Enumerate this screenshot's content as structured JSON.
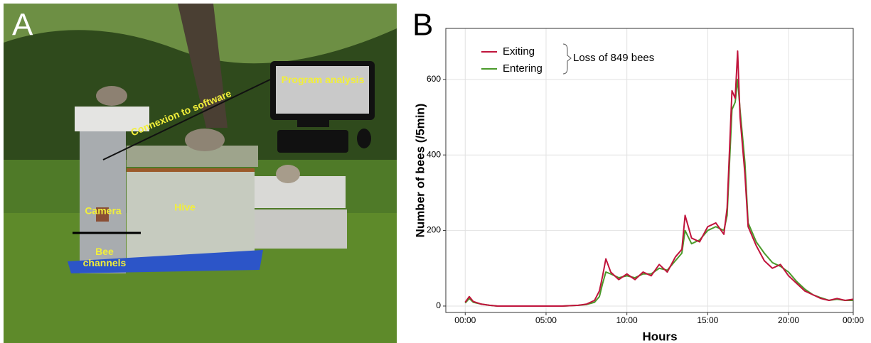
{
  "photo": {
    "panel": "A",
    "labels": {
      "connexion": "Connexion to software",
      "program": "Program analysis",
      "camera": "Camera",
      "hive": "Hive",
      "channels": "Bee channels"
    }
  },
  "chart_data": {
    "type": "line",
    "panel": "B",
    "x_label": "Hours",
    "y_label": "Number of bees (/5min)",
    "annotation": "Loss of 849 bees",
    "x": [
      0,
      0.25,
      0.5,
      1,
      1.5,
      2,
      3,
      4,
      5,
      6,
      7,
      7.5,
      8,
      8.3,
      8.5,
      8.7,
      9,
      9.5,
      10,
      10.5,
      11,
      11.5,
      12,
      12.5,
      13,
      13.4,
      13.6,
      14,
      14.5,
      15,
      15.5,
      16,
      16.2,
      16.5,
      16.7,
      16.85,
      17,
      17.3,
      17.5,
      18,
      18.5,
      19,
      19.5,
      20,
      20.5,
      21,
      21.5,
      22,
      22.5,
      23,
      23.5,
      24
    ],
    "series": [
      {
        "name": "Exiting",
        "color": "#c0143c",
        "values": [
          10,
          25,
          12,
          5,
          2,
          0,
          0,
          0,
          0,
          0,
          2,
          5,
          15,
          40,
          80,
          125,
          90,
          70,
          85,
          70,
          90,
          80,
          110,
          90,
          130,
          150,
          240,
          180,
          170,
          210,
          220,
          190,
          260,
          570,
          550,
          675,
          500,
          350,
          210,
          160,
          120,
          100,
          110,
          80,
          60,
          40,
          30,
          20,
          15,
          20,
          15,
          18
        ]
      },
      {
        "name": "Entering",
        "color": "#4a9a2a",
        "values": [
          8,
          20,
          10,
          5,
          2,
          0,
          0,
          0,
          0,
          0,
          2,
          4,
          10,
          25,
          60,
          90,
          85,
          75,
          80,
          75,
          85,
          85,
          100,
          95,
          120,
          140,
          200,
          165,
          175,
          200,
          210,
          200,
          240,
          520,
          540,
          600,
          520,
          380,
          220,
          170,
          140,
          115,
          105,
          90,
          65,
          45,
          30,
          22,
          15,
          18,
          15,
          15
        ]
      }
    ],
    "xlim": [
      -1.2,
      24
    ],
    "ylim": [
      -17,
      735
    ],
    "xticks": [
      {
        "value": 0,
        "label": "00:00"
      },
      {
        "value": 5,
        "label": "05:00"
      },
      {
        "value": 10,
        "label": "10:00"
      },
      {
        "value": 15,
        "label": "15:00"
      },
      {
        "value": 20,
        "label": "20:00"
      },
      {
        "value": 24,
        "label": "00:00"
      }
    ],
    "yticks": [
      0,
      200,
      400,
      600
    ],
    "grid": true,
    "legend": "upper left"
  }
}
